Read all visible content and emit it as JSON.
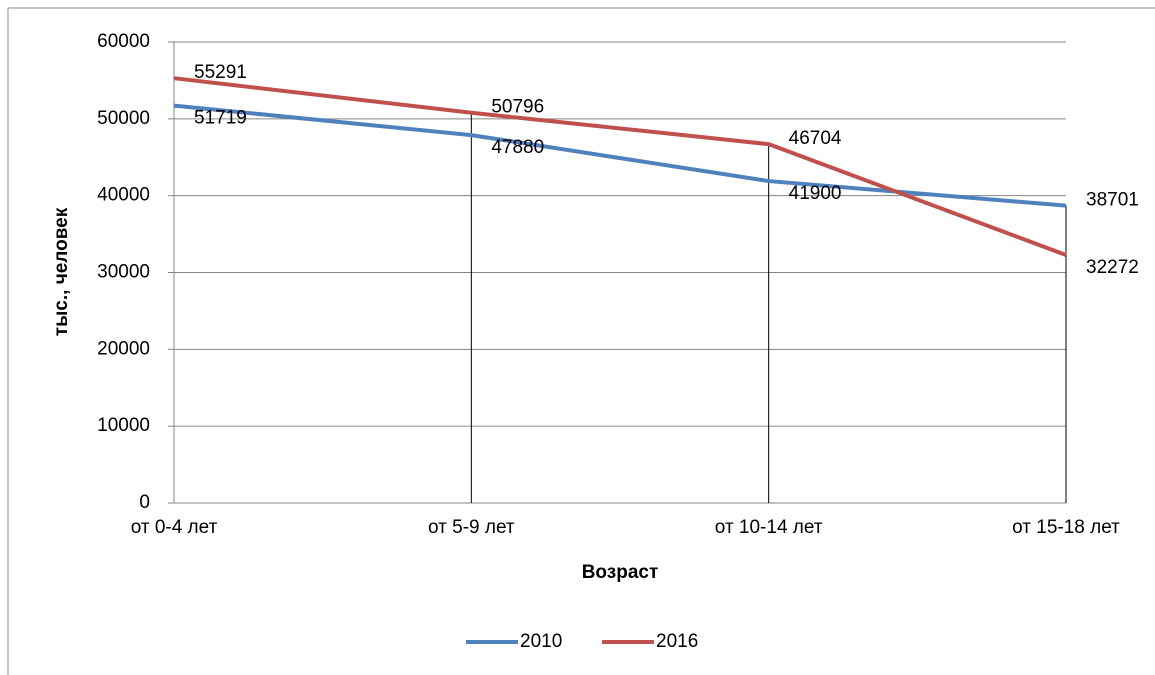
{
  "chart_data": {
    "type": "line",
    "categories": [
      "от 0-4 лет",
      "от 5-9 лет",
      "от 10-14 лет",
      "от 15-18 лет"
    ],
    "series": [
      {
        "name": "2010",
        "color": "#4f81bd",
        "values": [
          51719,
          47880,
          41900,
          38701
        ]
      },
      {
        "name": "2016",
        "color": "#c0504d",
        "values": [
          55291,
          50796,
          46704,
          32272
        ]
      }
    ],
    "ylim": [
      0,
      60000
    ],
    "yticks": [
      0,
      10000,
      20000,
      30000,
      40000,
      50000,
      60000
    ],
    "ylabel": "тыс., человек",
    "xlabel": "Возраст",
    "grid": true,
    "legend": "bottom"
  }
}
